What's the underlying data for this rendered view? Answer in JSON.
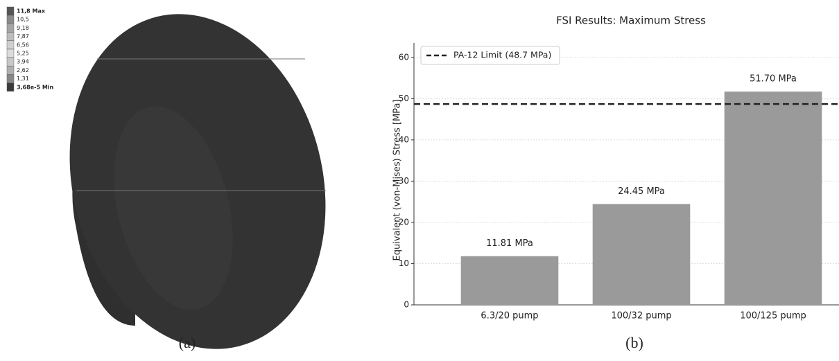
{
  "panel_a": {
    "legend": [
      "11,8 Max",
      "10,5",
      "9,18",
      "7,87",
      "6,56",
      "5,25",
      "3,94",
      "2,62",
      "1,31",
      "3,68e-5 Min"
    ]
  },
  "captions": [
    "(a)",
    "(b)"
  ],
  "chart_data": {
    "type": "bar",
    "title": "FSI Results: Maximum Stress",
    "y_label": "Equivalent (von-Mises) Stress [MPa]",
    "categories": [
      "6.3/20 pump",
      "100/32 pump",
      "100/125 pump"
    ],
    "values": [
      11.81,
      24.45,
      51.7
    ],
    "value_labels": [
      "11.81 MPa",
      "24.45 MPa",
      "51.70 MPa"
    ],
    "color": "#9a9a9a",
    "reference_lines": [
      {
        "value": 48.7,
        "label": "PA-12 Limit (48.7 MPa)",
        "style": "dashed",
        "color": "#222222"
      }
    ],
    "legend_position": "upper left",
    "ylim": [
      0,
      63.5
    ],
    "yticks": [
      0,
      10,
      20,
      30,
      40,
      50,
      60
    ],
    "grid": true
  }
}
